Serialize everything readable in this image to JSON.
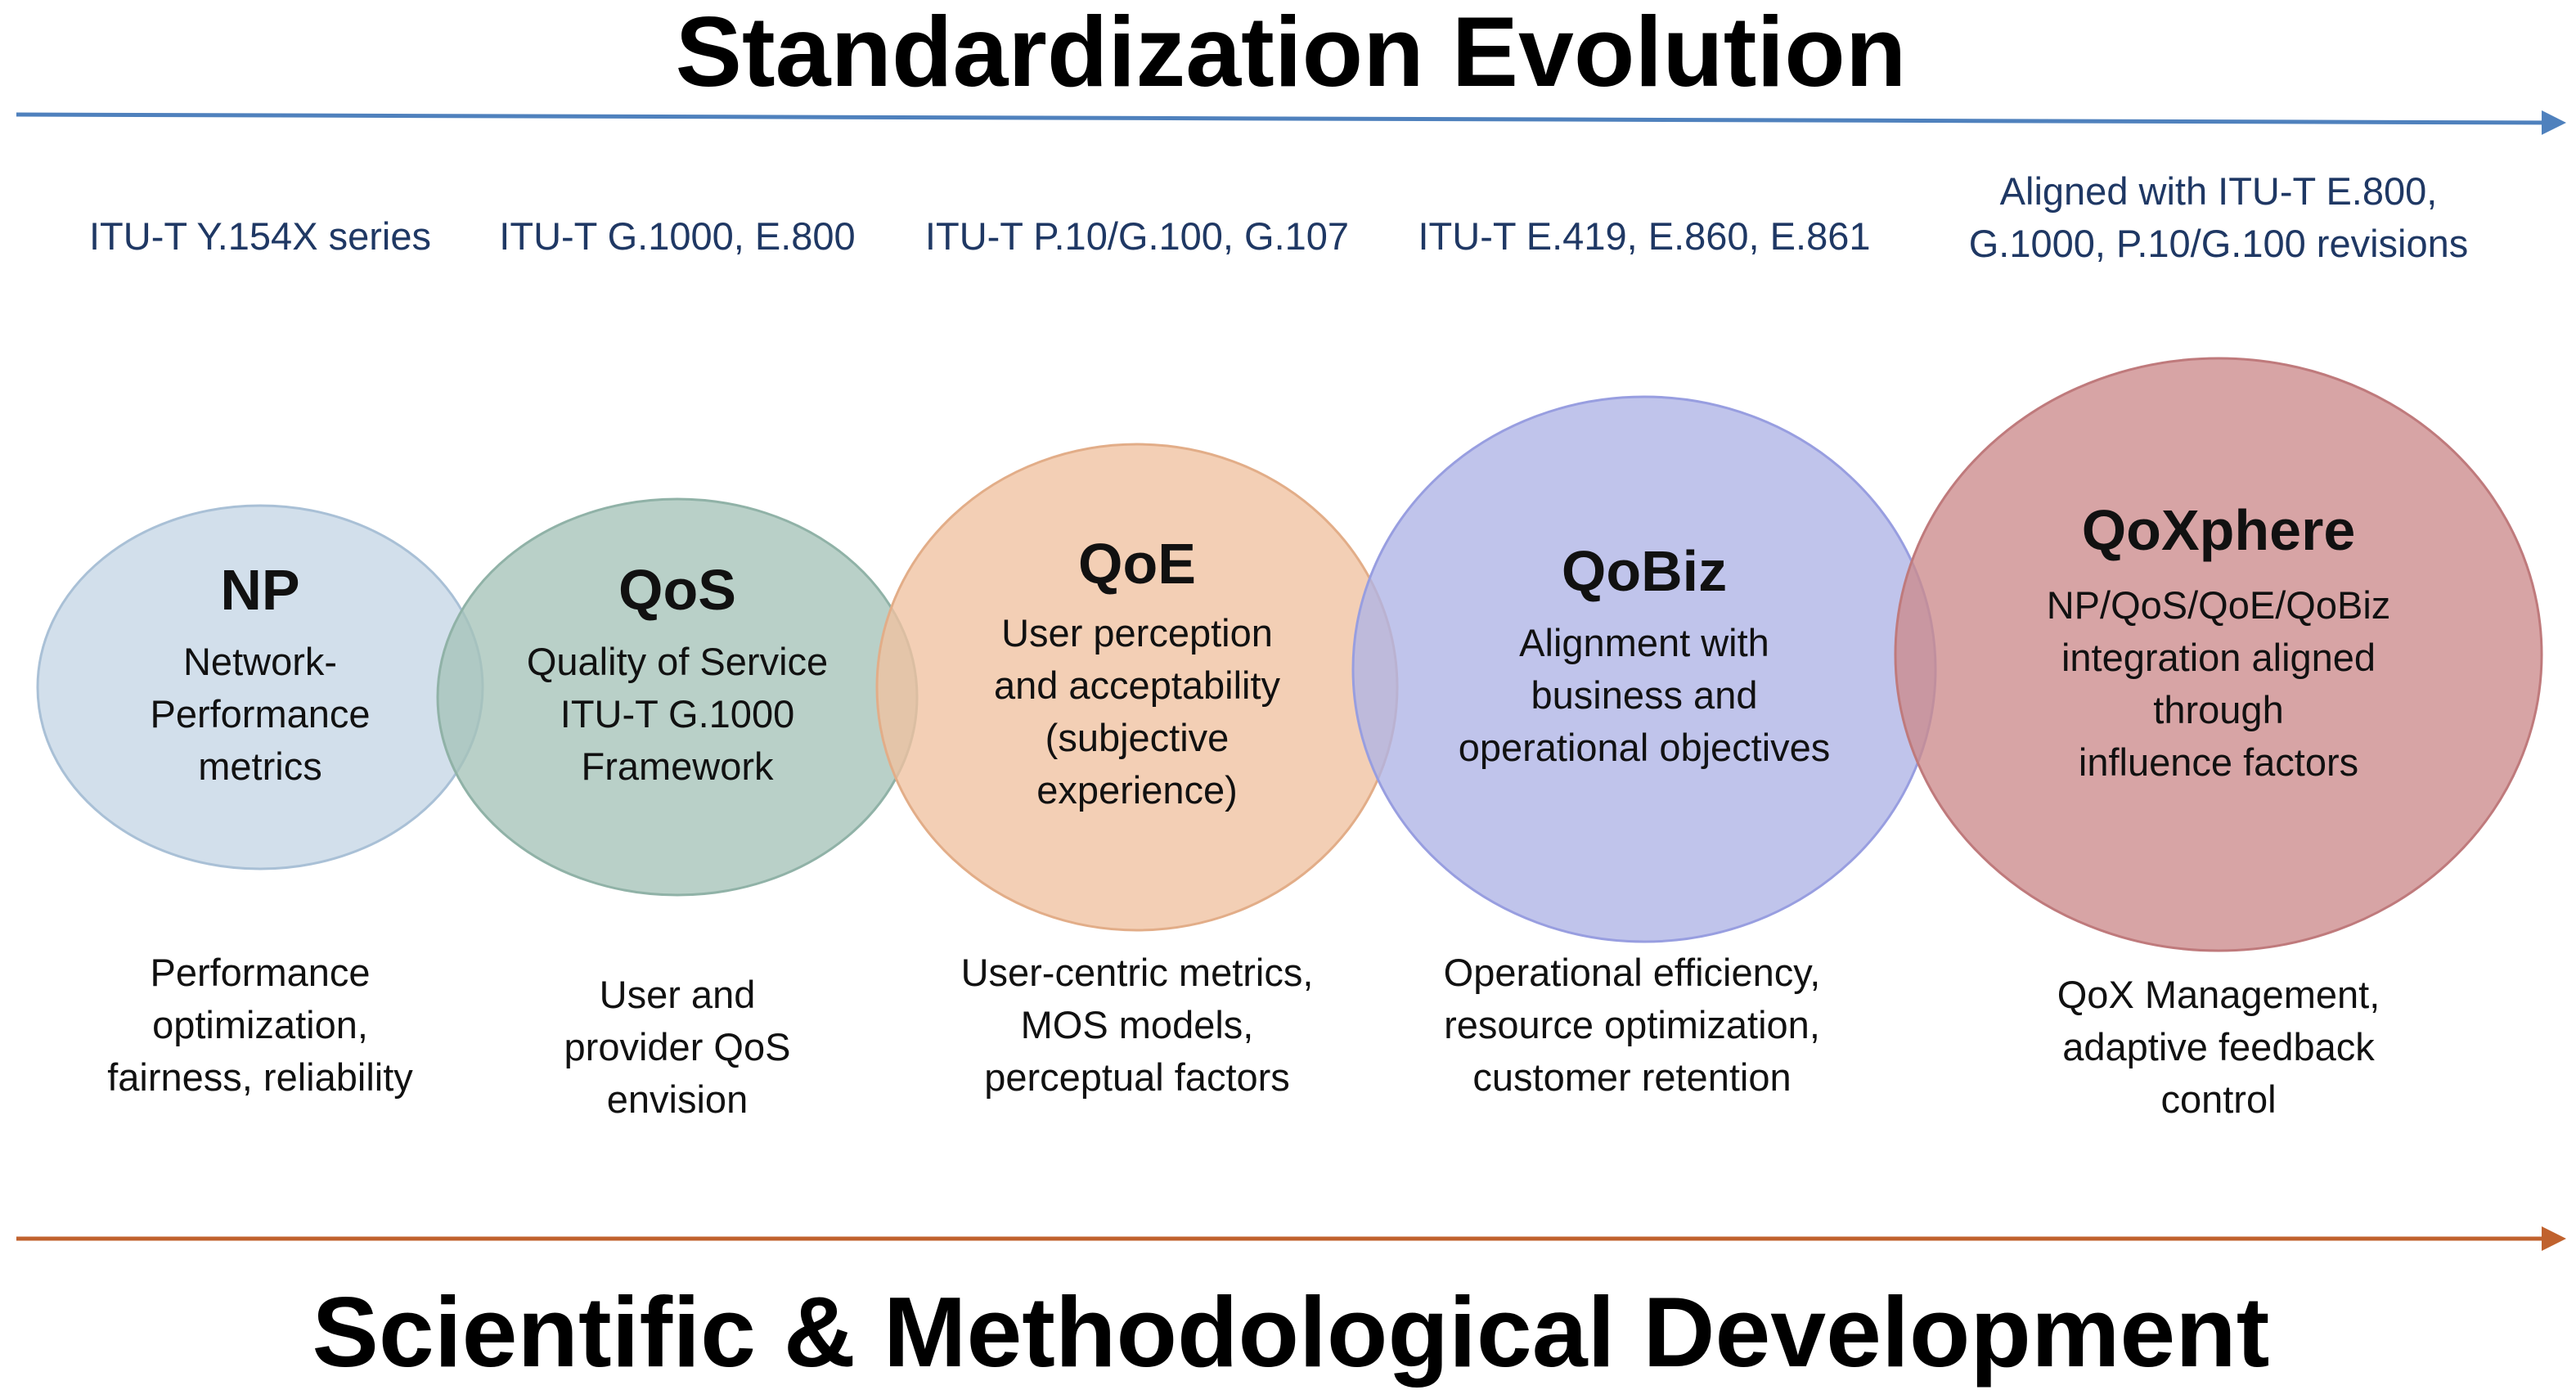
{
  "top_title": "Standardization Evolution",
  "bottom_title": "Scientific & Methodological Development",
  "colors": {
    "top_arrow": "#4f81bd",
    "bottom_arrow": "#c0622e"
  },
  "stages": [
    {
      "standards": [
        "ITU-T Y.154X series"
      ],
      "name": "NP",
      "description": [
        "Network-",
        "Performance",
        "metrics"
      ],
      "outcome": [
        "Performance",
        "optimization,",
        "fairness, reliability"
      ],
      "fill": "#c5d6e6",
      "stroke": "#a9c0d6"
    },
    {
      "standards": [
        "ITU-T G.1000, E.800"
      ],
      "name": "QoS",
      "description": [
        "Quality of Service",
        "ITU-T G.1000",
        "Framework"
      ],
      "outcome": [
        "User and",
        "provider QoS",
        "envision"
      ],
      "fill": "#a5c3b9",
      "stroke": "#90b2a7"
    },
    {
      "standards": [
        "ITU-T P.10/G.100, G.107"
      ],
      "name": "QoE",
      "description": [
        "User perception",
        "and acceptability",
        "(subjective",
        "experience)"
      ],
      "outcome": [
        "User-centric metrics,",
        "MOS models,",
        "perceptual factors"
      ],
      "fill": "#efc2a0",
      "stroke": "#e2ad88"
    },
    {
      "standards": [
        "ITU-T E.419, E.860, E.861"
      ],
      "name": "QoBiz",
      "description": [
        "Alignment with",
        "business and",
        "operational objectives"
      ],
      "outcome": [
        "Operational efficiency,",
        "resource optimization,",
        "customer retention"
      ],
      "fill": "#aeb3e6",
      "stroke": "#989ee0"
    },
    {
      "standards": [
        "Aligned with ITU-T E.800,",
        "G.1000, P.10/G.100 revisions"
      ],
      "name": "QoXphere",
      "description": [
        "NP/QoS/QoE/QoBiz",
        "integration aligned",
        "through",
        "influence factors"
      ],
      "outcome": [
        "QoX Management,",
        "adaptive feedback",
        "control"
      ],
      "fill": "#cc8a8c",
      "stroke": "#bf7a7c"
    }
  ]
}
